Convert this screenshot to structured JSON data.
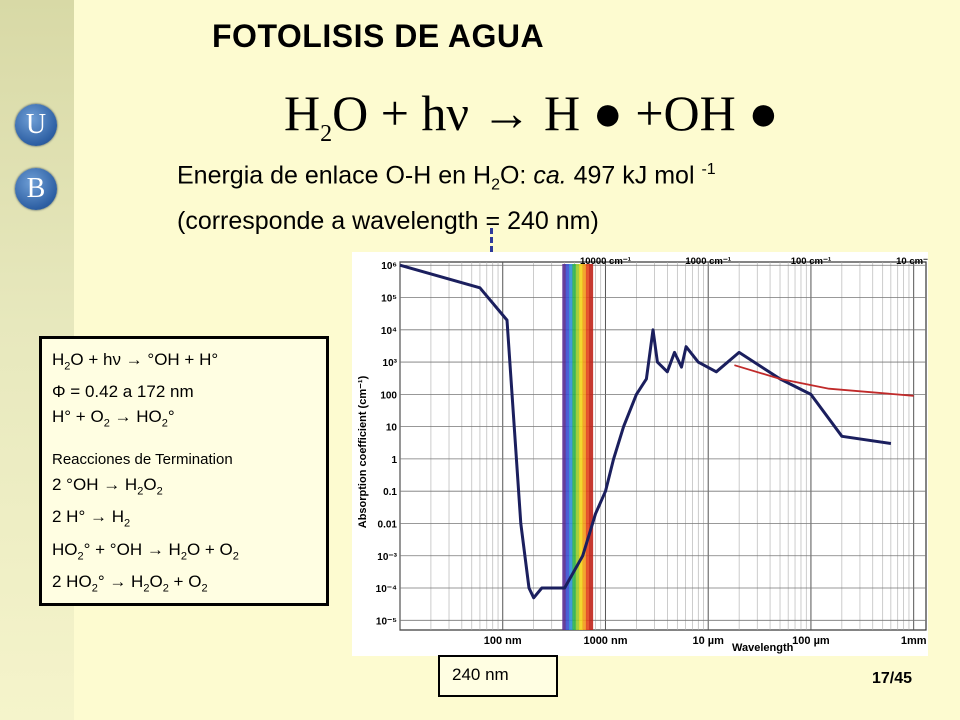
{
  "title": "FOTOLISIS DE AGUA",
  "logo": {
    "letter1": "U",
    "letter2": "B"
  },
  "equation": {
    "left_H": "H",
    "left_sub": "2",
    "left_O": "O + h",
    "nu": "ν",
    "arrow": "→",
    "right": "H ● +OH ●"
  },
  "energy": {
    "line1_a": "Energia de enlace O-H en H",
    "line1_sub": "2",
    "line1_b": "O: ",
    "line1_ca": "ca.",
    "line1_c": " 497 kJ mol ",
    "line1_sup": "-1",
    "line2": "(corresponde a wavelength = 240 nm)"
  },
  "reactions_box": {
    "r1_a": "H",
    "r1_sub": "2",
    "r1_b": "O + hν → °OH + H°",
    "r2": "Φ = 0.42 a 172 nm",
    "r3_a": "H° + O",
    "r3_sub": "2",
    "r3_b": " → HO",
    "r3_sub2": "2",
    "r3_c": "°",
    "termination_heading": "Reacciones de Termination",
    "t1_a": "2 °OH → H",
    "t1_sub": "2",
    "t1_b": "O",
    "t1_sub2": "2",
    "t2_a": "2 H° → H",
    "t2_sub": "2",
    "t3_a": "HO",
    "t3_sub": "2",
    "t3_b": "° + °OH → H",
    "t3_sub2": "2",
    "t3_c": "O + O",
    "t3_sub3": "2",
    "t4_a": "2 HO",
    "t4_sub": "2",
    "t4_b": "° → H",
    "t4_sub2": "2",
    "t4_c": "O",
    "t4_sub3": "2",
    "t4_d": " + O",
    "t4_sub4": "2"
  },
  "chart_data": {
    "type": "line",
    "xlabel": "Wavelength",
    "ylabel": "Absorption coefficient (cm⁻¹)",
    "x_scale": "log",
    "y_scale": "log",
    "x_tick_labels": [
      "100 nm",
      "1000 nm",
      "10 µm",
      "100 µm",
      "1mm"
    ],
    "top_tick_labels": [
      "10000 cm⁻¹",
      "1000 cm⁻¹",
      "100 cm⁻¹",
      "10 cm⁻¹"
    ],
    "y_tick_labels": [
      "10⁶",
      "10⁵",
      "10⁴",
      "10³",
      "100",
      "10",
      "1",
      "0.1",
      "0.01",
      "10⁻³",
      "10⁻⁴",
      "10⁻⁵"
    ],
    "series": [
      {
        "color": "#1b1f5e",
        "points": [
          [
            10,
            1000000
          ],
          [
            60,
            200000
          ],
          [
            110,
            20000
          ],
          [
            150,
            0.01
          ],
          [
            180,
            0.0001
          ],
          [
            200,
            5e-05
          ],
          [
            240,
            0.0001
          ],
          [
            400,
            0.0001
          ],
          [
            600,
            0.001
          ],
          [
            800,
            0.02
          ],
          [
            1000,
            0.1
          ],
          [
            1200,
            1
          ],
          [
            1500,
            10
          ],
          [
            2000,
            100
          ],
          [
            2500,
            300
          ],
          [
            2900,
            10000
          ],
          [
            3200,
            1000
          ],
          [
            4000,
            500
          ],
          [
            4700,
            2000
          ],
          [
            5500,
            700
          ],
          [
            6100,
            3000
          ],
          [
            8000,
            1000
          ],
          [
            12000,
            500
          ],
          [
            20000,
            2000
          ],
          [
            50000,
            300
          ],
          [
            100000,
            100
          ],
          [
            200000,
            5
          ],
          [
            600000,
            3
          ]
        ]
      },
      {
        "color": "#c02a2a",
        "points": [
          [
            18000,
            800
          ],
          [
            50000,
            300
          ],
          [
            150000,
            150
          ],
          [
            1000000,
            90
          ]
        ]
      }
    ],
    "annotations": [
      "240 nm"
    ]
  },
  "page_number": "17/45"
}
